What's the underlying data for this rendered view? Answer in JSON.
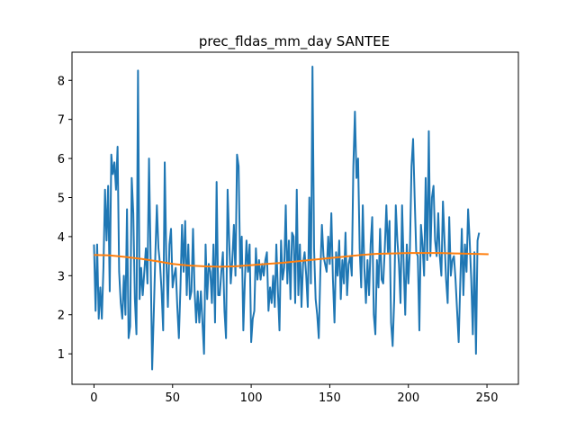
{
  "chart_data": {
    "type": "line",
    "title": "prec_fldas_mm_day SANTEE",
    "xlabel": "",
    "ylabel": "",
    "xlim": [
      -14,
      270
    ],
    "ylim": [
      0.22,
      8.72
    ],
    "xticks": [
      0,
      50,
      100,
      150,
      200,
      250
    ],
    "yticks": [
      1,
      2,
      3,
      4,
      5,
      6,
      7,
      8
    ],
    "grid": false,
    "series": [
      {
        "color": "#1f77b4",
        "values": [
          3.8,
          2.1,
          3.8,
          1.9,
          2.7,
          1.9,
          3.2,
          5.2,
          3.9,
          5.3,
          2.6,
          6.1,
          5.6,
          5.9,
          5.2,
          6.3,
          3.1,
          2.3,
          1.9,
          3.0,
          2.0,
          4.7,
          1.4,
          1.7,
          5.5,
          4.6,
          2.4,
          1.5,
          8.25,
          2.4,
          3.2,
          2.5,
          3.1,
          3.7,
          2.8,
          6.0,
          3.5,
          0.6,
          2.0,
          3.5,
          4.8,
          3.7,
          3.3,
          2.6,
          1.6,
          5.9,
          3.4,
          2.2,
          3.8,
          4.2,
          2.7,
          3.0,
          3.2,
          2.2,
          1.4,
          2.7,
          4.3,
          3.1,
          4.4,
          2.5,
          3.8,
          2.4,
          2.6,
          4.2,
          2.6,
          1.8,
          2.6,
          1.8,
          2.6,
          1.8,
          1.0,
          3.8,
          2.4,
          3.3,
          3.1,
          2.3,
          3.8,
          1.8,
          5.4,
          2.5,
          2.5,
          3.1,
          3.6,
          2.1,
          1.4,
          5.2,
          3.9,
          2.8,
          3.4,
          4.3,
          3.0,
          6.1,
          5.8,
          3.2,
          4.0,
          1.6,
          2.9,
          3.9,
          3.1,
          3.8,
          1.3,
          1.9,
          2.1,
          3.7,
          2.9,
          3.4,
          2.9,
          3.3,
          3.0,
          3.4,
          3.6,
          2.1,
          2.7,
          2.3,
          3.0,
          2.2,
          3.8,
          2.6,
          1.6,
          3.9,
          2.9,
          3.2,
          4.8,
          2.8,
          3.9,
          2.4,
          4.1,
          4.0,
          2.3,
          5.2,
          2.5,
          3.8,
          2.2,
          3.3,
          3.6,
          3.0,
          2.2,
          5.0,
          2.8,
          8.35,
          3.7,
          2.4,
          2.0,
          1.4,
          3.1,
          4.3,
          3.5,
          3.3,
          3.1,
          4.0,
          3.3,
          4.6,
          2.9,
          1.8,
          3.6,
          3.0,
          3.9,
          2.4,
          3.4,
          2.8,
          4.1,
          2.5,
          3.3,
          3.5,
          3.0,
          5.8,
          7.2,
          5.5,
          6.0,
          3.7,
          2.7,
          4.8,
          3.2,
          2.3,
          3.4,
          2.5,
          3.8,
          4.5,
          2.0,
          1.5,
          3.4,
          2.7,
          4.2,
          2.9,
          2.8,
          3.7,
          4.8,
          3.6,
          4.4,
          1.8,
          1.2,
          2.4,
          4.8,
          3.9,
          3.3,
          2.3,
          4.8,
          3.3,
          2.0,
          3.8,
          2.8,
          3.7,
          5.8,
          6.5,
          5.0,
          3.6,
          3.5,
          1.6,
          4.3,
          3.8,
          3.0,
          5.5,
          3.4,
          6.7,
          3.5,
          5.0,
          5.3,
          3.9,
          3.5,
          4.6,
          3.5,
          3.0,
          4.9,
          3.9,
          2.9,
          2.3,
          4.5,
          3.0,
          3.4,
          3.5,
          2.9,
          2.1,
          1.3,
          2.8,
          4.2,
          2.5,
          3.8,
          3.1,
          4.7,
          3.9,
          2.9,
          1.5,
          3.6,
          1.0,
          3.9,
          4.1
        ]
      },
      {
        "color": "#ff7f0e",
        "x": [
          0,
          10,
          20,
          30,
          40,
          50,
          60,
          70,
          80,
          90,
          100,
          110,
          120,
          130,
          140,
          150,
          160,
          170,
          180,
          190,
          200,
          210,
          220,
          230,
          240,
          251
        ],
        "values": [
          3.53,
          3.52,
          3.48,
          3.43,
          3.37,
          3.3,
          3.26,
          3.24,
          3.23,
          3.24,
          3.27,
          3.3,
          3.33,
          3.37,
          3.41,
          3.45,
          3.49,
          3.53,
          3.56,
          3.57,
          3.58,
          3.58,
          3.58,
          3.57,
          3.56,
          3.55
        ]
      }
    ]
  }
}
